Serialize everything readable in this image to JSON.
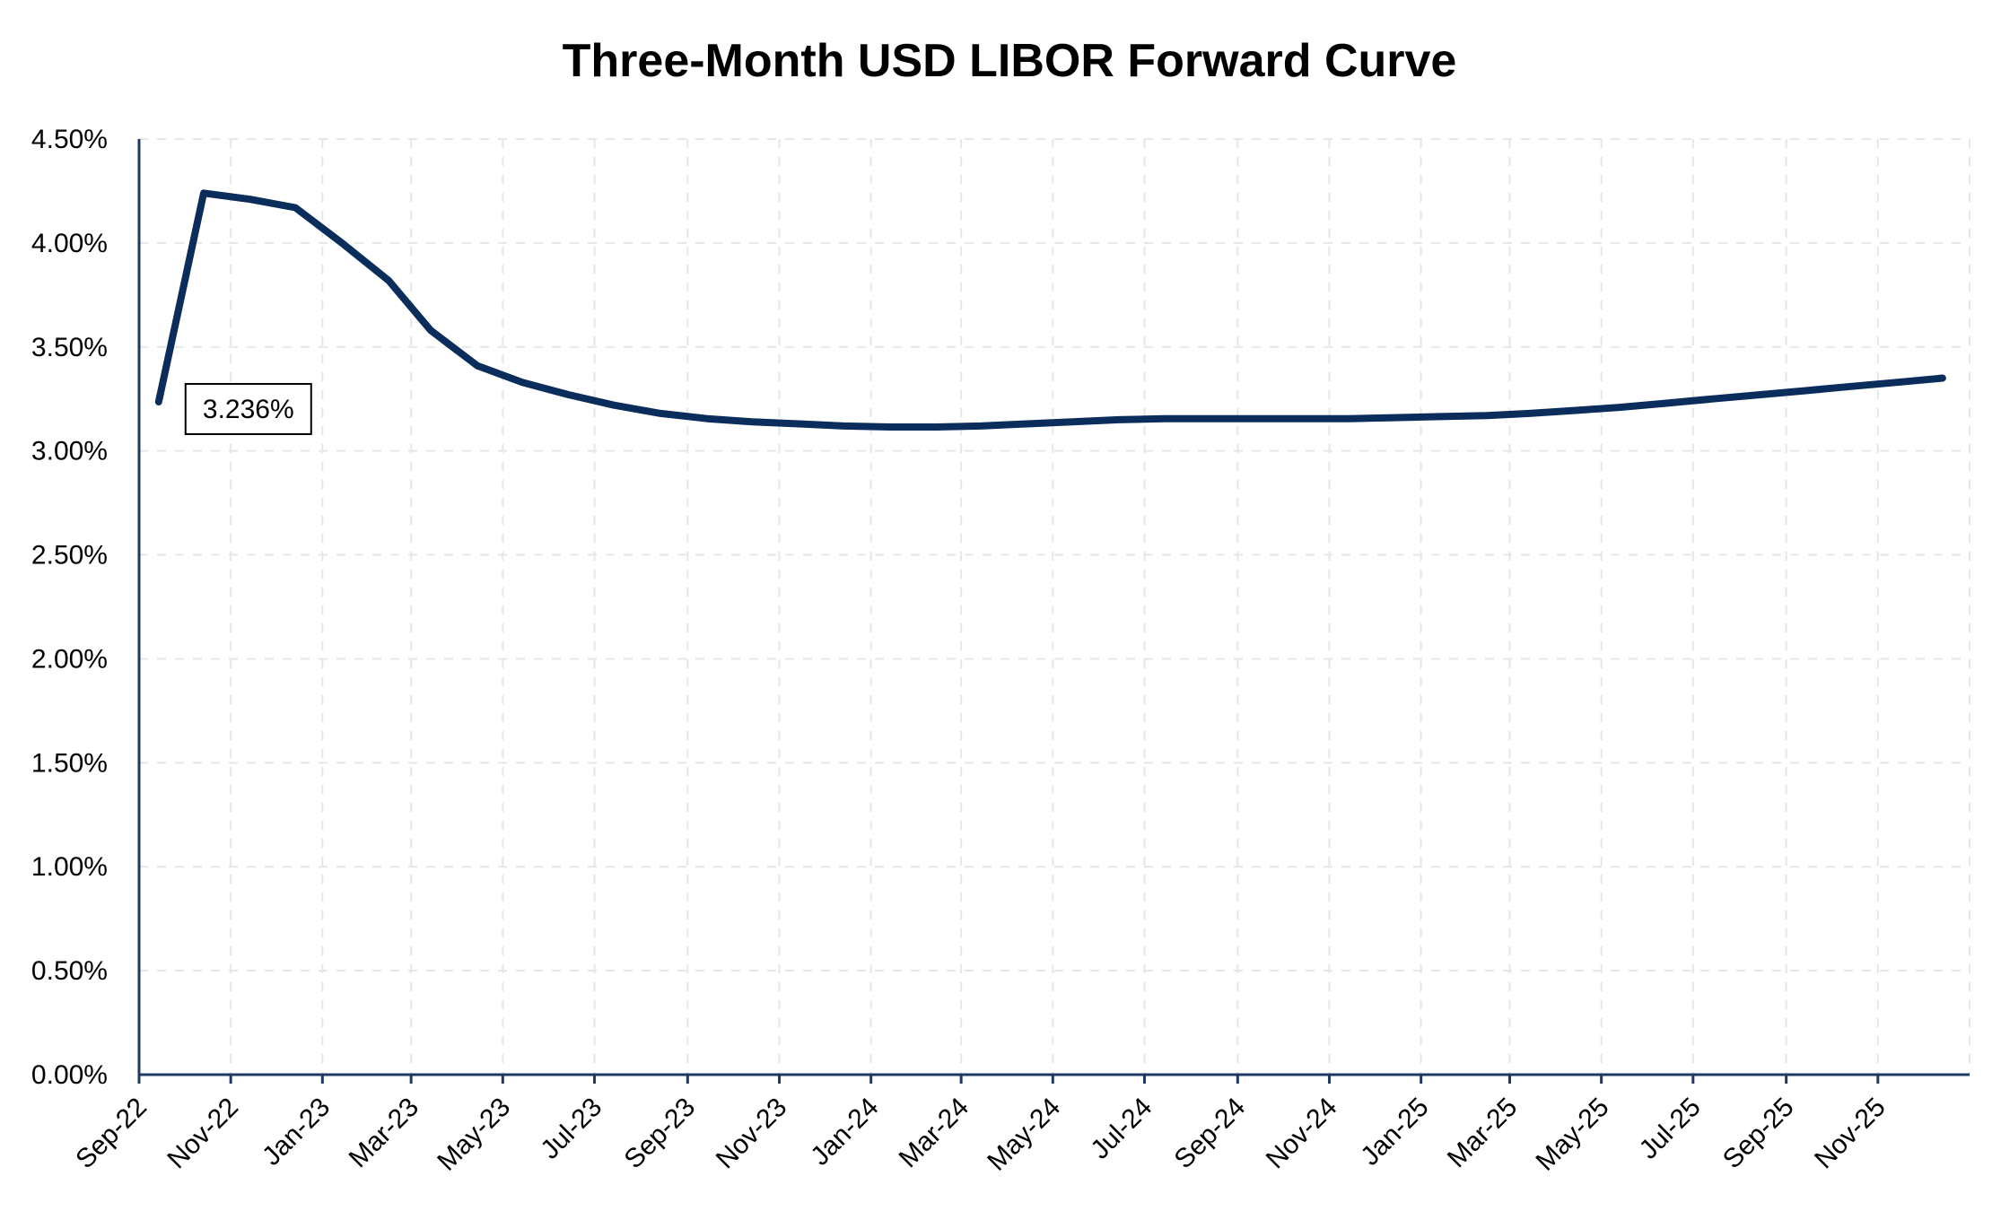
{
  "chart_data": {
    "type": "line",
    "title": "Three-Month USD LIBOR Forward Curve",
    "xlabel": "",
    "ylabel": "",
    "ylim": [
      0,
      4.5
    ],
    "y_ticks": [
      "0.00%",
      "0.50%",
      "1.00%",
      "1.50%",
      "2.00%",
      "2.50%",
      "3.00%",
      "3.50%",
      "4.00%",
      "4.50%"
    ],
    "y_tick_values": [
      0,
      0.5,
      1.0,
      1.5,
      2.0,
      2.5,
      3.0,
      3.5,
      4.0,
      4.5
    ],
    "x_ticks": [
      "Sep-22",
      "Nov-22",
      "Jan-23",
      "Mar-23",
      "May-23",
      "Jul-23",
      "Sep-23",
      "Nov-23",
      "Jan-24",
      "Mar-24",
      "May-24",
      "Jul-24",
      "Sep-24",
      "Nov-24",
      "Jan-25",
      "Mar-25",
      "May-25",
      "Jul-25",
      "Sep-25",
      "Nov-25"
    ],
    "x_tick_dates": [
      "2022-09-01",
      "2022-11-01",
      "2023-01-01",
      "2023-03-01",
      "2023-05-01",
      "2023-07-01",
      "2023-09-01",
      "2023-11-01",
      "2024-01-01",
      "2024-03-01",
      "2024-05-01",
      "2024-07-01",
      "2024-09-01",
      "2024-11-01",
      "2025-01-01",
      "2025-03-01",
      "2025-05-01",
      "2025-07-01",
      "2025-09-01",
      "2025-11-01"
    ],
    "xlim": [
      "2022-09-01",
      "2026-01-01"
    ],
    "grid": true,
    "legend": "none",
    "series": [
      {
        "color": "#0b2d5b",
        "x": [
          "2022-09-14",
          "2022-10-14",
          "2022-11-14",
          "2022-12-14",
          "2023-01-14",
          "2023-02-14",
          "2023-03-14",
          "2023-04-14",
          "2023-05-14",
          "2023-06-14",
          "2023-07-14",
          "2023-08-14",
          "2023-09-14",
          "2023-10-14",
          "2023-11-14",
          "2023-12-14",
          "2024-01-14",
          "2024-02-14",
          "2024-03-14",
          "2024-04-14",
          "2024-05-14",
          "2024-06-14",
          "2024-07-14",
          "2024-08-14",
          "2024-09-14",
          "2024-10-14",
          "2024-11-14",
          "2024-12-14",
          "2025-01-14",
          "2025-02-14",
          "2025-03-14",
          "2025-04-14",
          "2025-05-14",
          "2025-06-14",
          "2025-07-14",
          "2025-08-14",
          "2025-09-14",
          "2025-10-14",
          "2025-11-14",
          "2025-12-14"
        ],
        "y": [
          3.236,
          4.24,
          4.21,
          4.17,
          4.0,
          3.82,
          3.58,
          3.41,
          3.33,
          3.27,
          3.22,
          3.18,
          3.155,
          3.14,
          3.13,
          3.12,
          3.115,
          3.115,
          3.12,
          3.13,
          3.14,
          3.15,
          3.155,
          3.155,
          3.155,
          3.155,
          3.155,
          3.16,
          3.165,
          3.17,
          3.18,
          3.195,
          3.21,
          3.23,
          3.25,
          3.27,
          3.29,
          3.31,
          3.33,
          3.35
        ]
      }
    ],
    "annotations": [
      {
        "text": "3.236%",
        "x": "2022-09-14",
        "y": 3.236
      }
    ]
  }
}
